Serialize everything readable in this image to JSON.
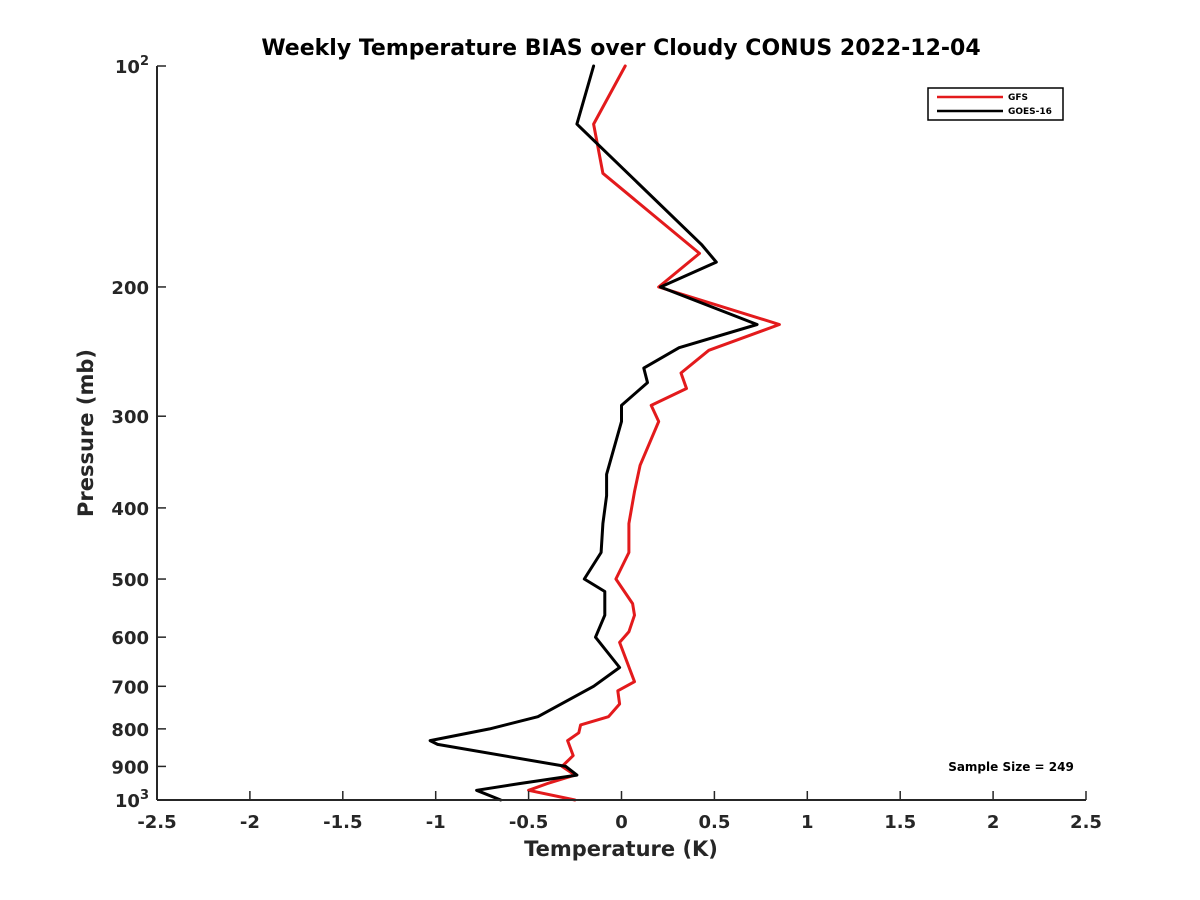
{
  "chart_data": {
    "type": "line",
    "title": "Weekly Temperature BIAS over Cloudy CONUS 2022-12-04",
    "xlabel": "Temperature (K)",
    "ylabel": "Pressure (mb)",
    "xlim": [
      -2.5,
      2.5
    ],
    "ylim": [
      100,
      1000
    ],
    "y_scale": "log",
    "y_reversed": true,
    "grid": false,
    "legend_position": "top-right",
    "x_ticks": [
      -2.5,
      -2,
      -1.5,
      -1,
      -0.5,
      0,
      0.5,
      1,
      1.5,
      2,
      2.5
    ],
    "x_tick_labels": [
      "-2.5",
      "-2",
      "-1.5",
      "-1",
      "-0.5",
      "0",
      "0.5",
      "1",
      "1.5",
      "2",
      "2.5"
    ],
    "y_ticks": [
      100,
      200,
      300,
      400,
      500,
      600,
      700,
      800,
      900,
      1000
    ],
    "y_tick_labels": [
      {
        "text": "10",
        "sup": "2"
      },
      {
        "text": "200"
      },
      {
        "text": "300"
      },
      {
        "text": "400"
      },
      {
        "text": "500"
      },
      {
        "text": "600"
      },
      {
        "text": "700"
      },
      {
        "text": "800"
      },
      {
        "text": "900"
      },
      {
        "text": "10",
        "sup": "3"
      }
    ],
    "annotation": "Sample Size = 249",
    "series": [
      {
        "name": "GFS",
        "color": "#e31a1c",
        "points": [
          [
            0.02,
            100
          ],
          [
            -0.15,
            120
          ],
          [
            -0.1,
            140
          ],
          [
            0.42,
            180
          ],
          [
            0.2,
            200
          ],
          [
            0.85,
            225
          ],
          [
            0.47,
            244
          ],
          [
            0.32,
            262
          ],
          [
            0.35,
            275
          ],
          [
            0.16,
            290
          ],
          [
            0.2,
            305
          ],
          [
            0.1,
            350
          ],
          [
            0.07,
            380
          ],
          [
            0.04,
            420
          ],
          [
            0.04,
            460
          ],
          [
            -0.03,
            500
          ],
          [
            0.06,
            540
          ],
          [
            0.07,
            560
          ],
          [
            0.04,
            590
          ],
          [
            -0.01,
            610
          ],
          [
            0.07,
            690
          ],
          [
            -0.02,
            710
          ],
          [
            -0.01,
            740
          ],
          [
            -0.07,
            770
          ],
          [
            -0.22,
            790
          ],
          [
            -0.23,
            810
          ],
          [
            -0.29,
            830
          ],
          [
            -0.26,
            870
          ],
          [
            -0.32,
            900
          ],
          [
            -0.25,
            925
          ],
          [
            -0.4,
            950
          ],
          [
            -0.5,
            970
          ],
          [
            -0.25,
            1000
          ]
        ]
      },
      {
        "name": "GOES-16",
        "color": "#000000",
        "points": [
          [
            -0.15,
            100
          ],
          [
            -0.24,
            120
          ],
          [
            0.43,
            175
          ],
          [
            0.51,
            185
          ],
          [
            0.21,
            200
          ],
          [
            0.73,
            225
          ],
          [
            0.31,
            242
          ],
          [
            0.12,
            258
          ],
          [
            0.14,
            270
          ],
          [
            0.0,
            290
          ],
          [
            0.0,
            305
          ],
          [
            -0.08,
            360
          ],
          [
            -0.08,
            385
          ],
          [
            -0.1,
            420
          ],
          [
            -0.11,
            460
          ],
          [
            -0.2,
            500
          ],
          [
            -0.09,
            520
          ],
          [
            -0.09,
            560
          ],
          [
            -0.14,
            600
          ],
          [
            -0.01,
            660
          ],
          [
            -0.15,
            700
          ],
          [
            -0.45,
            770
          ],
          [
            -0.71,
            800
          ],
          [
            -1.03,
            830
          ],
          [
            -0.99,
            840
          ],
          [
            -0.3,
            900
          ],
          [
            -0.24,
            925
          ],
          [
            -0.55,
            950
          ],
          [
            -0.78,
            970
          ],
          [
            -0.65,
            1000
          ]
        ]
      }
    ]
  }
}
